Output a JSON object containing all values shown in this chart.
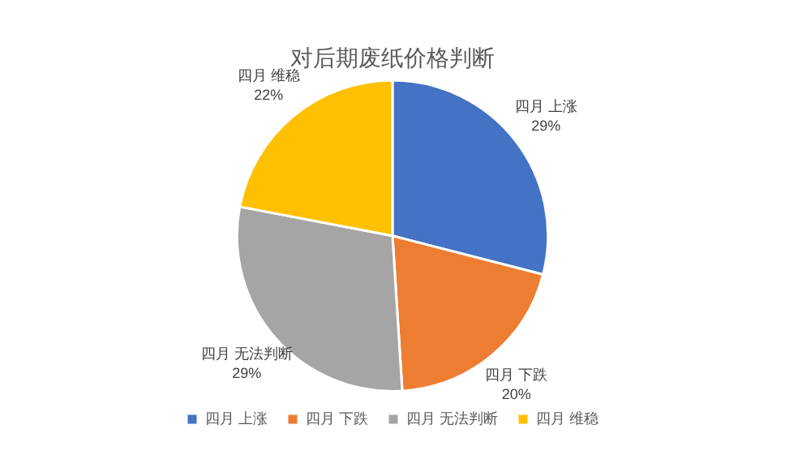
{
  "chart_data": {
    "type": "pie",
    "title": "对后期废纸价格判断",
    "categories": [
      "四月 上涨",
      "四月 下跌",
      "四月 无法判断",
      "四月 维稳"
    ],
    "values": [
      29,
      20,
      29,
      22
    ],
    "value_labels": [
      "29%",
      "20%",
      "29%",
      "22%"
    ],
    "colors": [
      "#4472c4",
      "#ed7d31",
      "#a5a5a5",
      "#ffc000"
    ],
    "legend": "bottom"
  }
}
